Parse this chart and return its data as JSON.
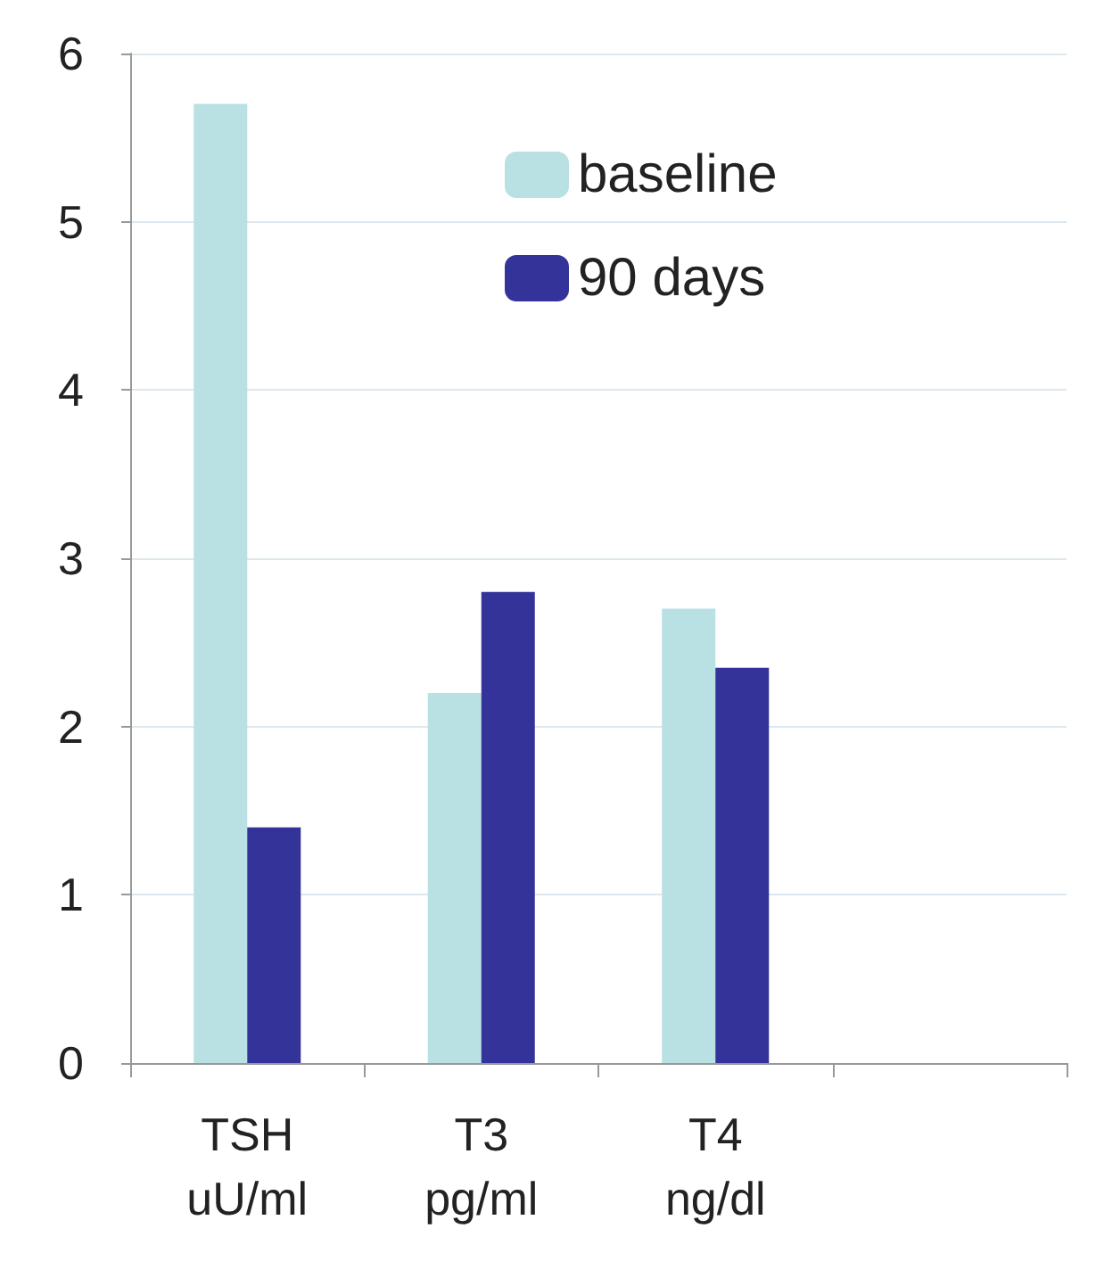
{
  "chart_data": {
    "type": "bar",
    "categories": [
      "TSH\nuU/ml",
      "T3\npg/ml",
      "T4\nng/dl",
      null
    ],
    "series": [
      {
        "name": "baseline",
        "color": "#b9e0e3",
        "values": [
          5.7,
          2.2,
          2.7,
          null
        ]
      },
      {
        "name": "90 days",
        "color": "#333399",
        "values": [
          1.4,
          2.8,
          2.35,
          null
        ]
      }
    ],
    "ylim": [
      0,
      6
    ],
    "yticks": [
      0,
      1,
      2,
      3,
      4,
      5,
      6
    ],
    "grid": "y",
    "legend": "top right"
  }
}
